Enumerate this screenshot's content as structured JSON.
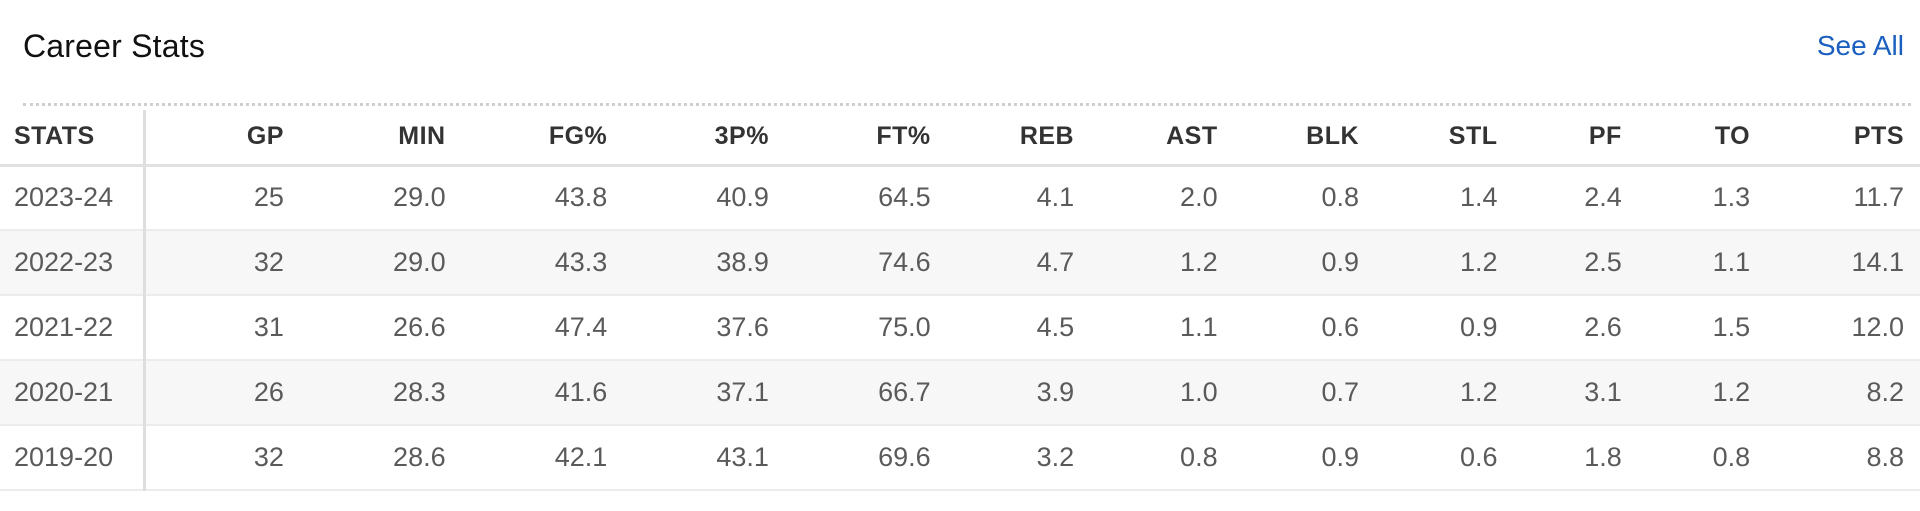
{
  "header": {
    "title": "Career Stats",
    "see_all_label": "See All"
  },
  "table": {
    "columns": [
      "STATS",
      "GP",
      "MIN",
      "FG%",
      "3P%",
      "FT%",
      "REB",
      "AST",
      "BLK",
      "STL",
      "PF",
      "TO",
      "PTS"
    ],
    "rows": [
      [
        "2023-24",
        "25",
        "29.0",
        "43.8",
        "40.9",
        "64.5",
        "4.1",
        "2.0",
        "0.8",
        "1.4",
        "2.4",
        "1.3",
        "11.7"
      ],
      [
        "2022-23",
        "32",
        "29.0",
        "43.3",
        "38.9",
        "74.6",
        "4.7",
        "1.2",
        "0.9",
        "1.2",
        "2.5",
        "1.1",
        "14.1"
      ],
      [
        "2021-22",
        "31",
        "26.6",
        "47.4",
        "37.6",
        "75.0",
        "4.5",
        "1.1",
        "0.6",
        "0.9",
        "2.6",
        "1.5",
        "12.0"
      ],
      [
        "2020-21",
        "26",
        "28.3",
        "41.6",
        "37.1",
        "66.7",
        "3.9",
        "1.0",
        "0.7",
        "1.2",
        "3.1",
        "1.2",
        "8.2"
      ],
      [
        "2019-20",
        "32",
        "28.6",
        "42.1",
        "43.1",
        "69.6",
        "3.2",
        "0.8",
        "0.9",
        "0.6",
        "1.8",
        "0.8",
        "8.8"
      ]
    ]
  },
  "colors": {
    "link": "#1a5fbf",
    "header_text": "#333333",
    "cell_text": "#5a5a5a",
    "zebra_row": "#f7f7f7"
  }
}
